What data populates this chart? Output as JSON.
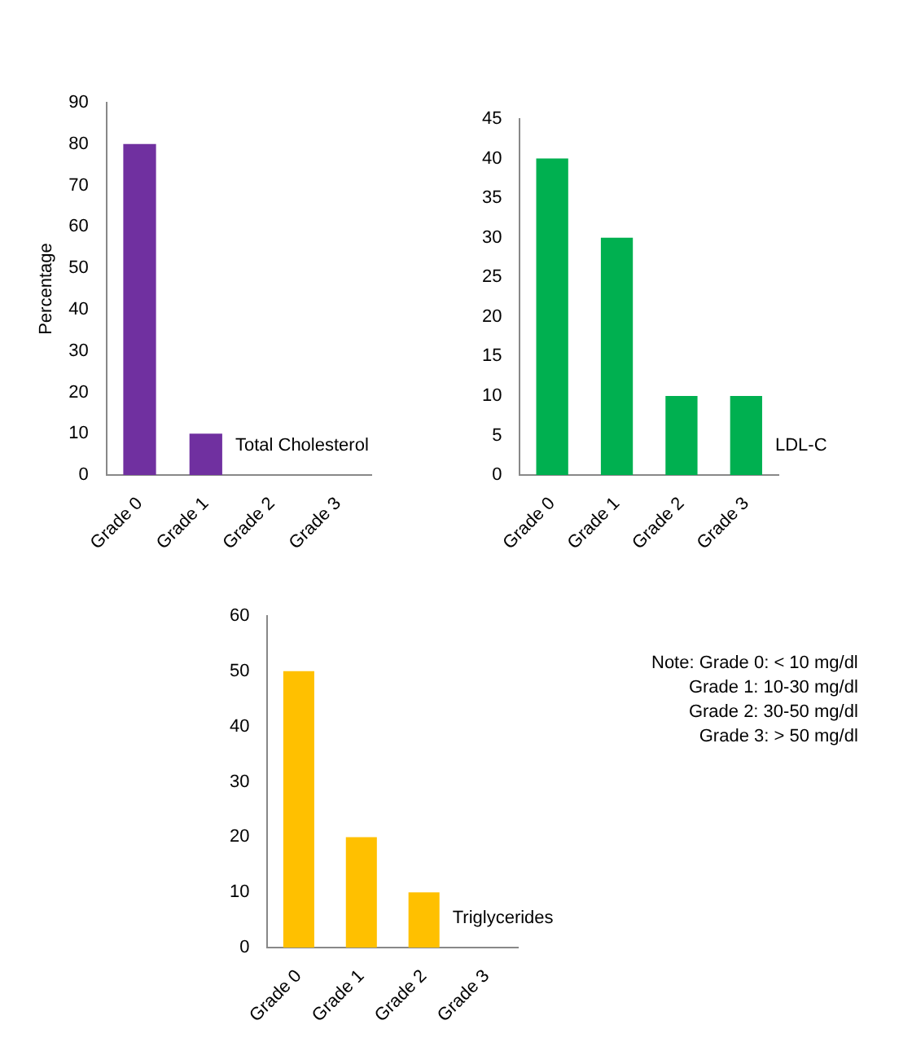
{
  "chart_data": [
    {
      "type": "bar",
      "ylabel": "Percentage",
      "categories": [
        "Grade 0",
        "Grade 1",
        "Grade 2",
        "Grade 3"
      ],
      "ylim": [
        0,
        90
      ],
      "yticks": [
        0,
        10,
        20,
        30,
        40,
        50,
        60,
        70,
        80,
        90
      ],
      "series": [
        {
          "name": "Total Cholesterol",
          "color": "#7030a0",
          "values": [
            80,
            10,
            0,
            0
          ]
        }
      ]
    },
    {
      "type": "bar",
      "categories": [
        "Grade 0",
        "Grade 1",
        "Grade 2",
        "Grade 3"
      ],
      "ylim": [
        0,
        45
      ],
      "yticks": [
        0,
        5,
        10,
        15,
        20,
        25,
        30,
        35,
        40,
        45
      ],
      "series": [
        {
          "name": "LDL-C",
          "color": "#00b050",
          "values": [
            40,
            30,
            10,
            10
          ]
        }
      ]
    },
    {
      "type": "bar",
      "categories": [
        "Grade 0",
        "Grade 1",
        "Grade 2",
        "Grade 3"
      ],
      "ylim": [
        0,
        60
      ],
      "yticks": [
        0,
        10,
        20,
        30,
        40,
        50,
        60
      ],
      "series": [
        {
          "name": "Triglycerides",
          "color": "#ffc000",
          "values": [
            50,
            20,
            10,
            0
          ]
        }
      ],
      "annotations": [
        "Note: Grade 0: < 10 mg/dl",
        "Grade 1: 10-30 mg/dl",
        "Grade 2: 30-50 mg/dl",
        "Grade 3: > 50 mg/dl"
      ]
    }
  ]
}
